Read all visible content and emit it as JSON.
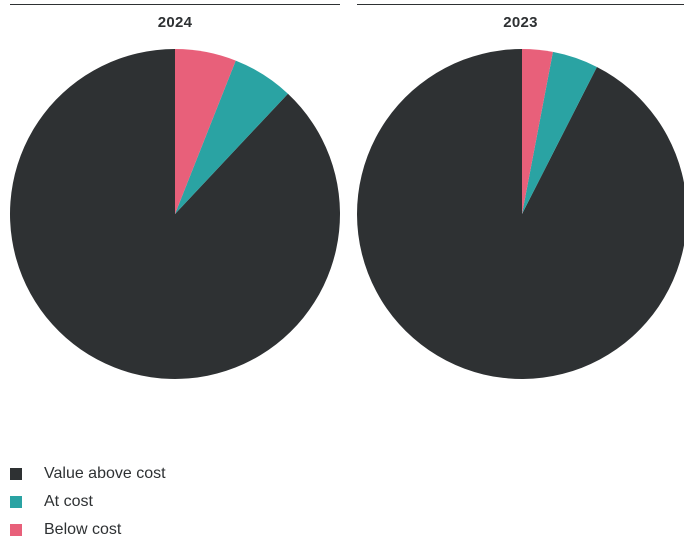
{
  "chart_data": [
    {
      "type": "pie",
      "title": "2024",
      "labels": [
        "Value above cost",
        "At cost",
        "Below cost"
      ],
      "values": [
        88,
        6,
        6
      ],
      "colors": [
        "#2e3133",
        "#2aa3a3",
        "#e8607a"
      ]
    },
    {
      "type": "pie",
      "title": "2023",
      "labels": [
        "Value above cost",
        "At cost",
        "Below cost"
      ],
      "values": [
        92.5,
        4.5,
        3
      ],
      "colors": [
        "#2e3133",
        "#2aa3a3",
        "#e8607a"
      ]
    }
  ],
  "legend": [
    {
      "label": "Value above cost",
      "color": "#2e3133"
    },
    {
      "label": "At cost",
      "color": "#2aa3a3"
    },
    {
      "label": "Below cost",
      "color": "#e8607a"
    }
  ]
}
